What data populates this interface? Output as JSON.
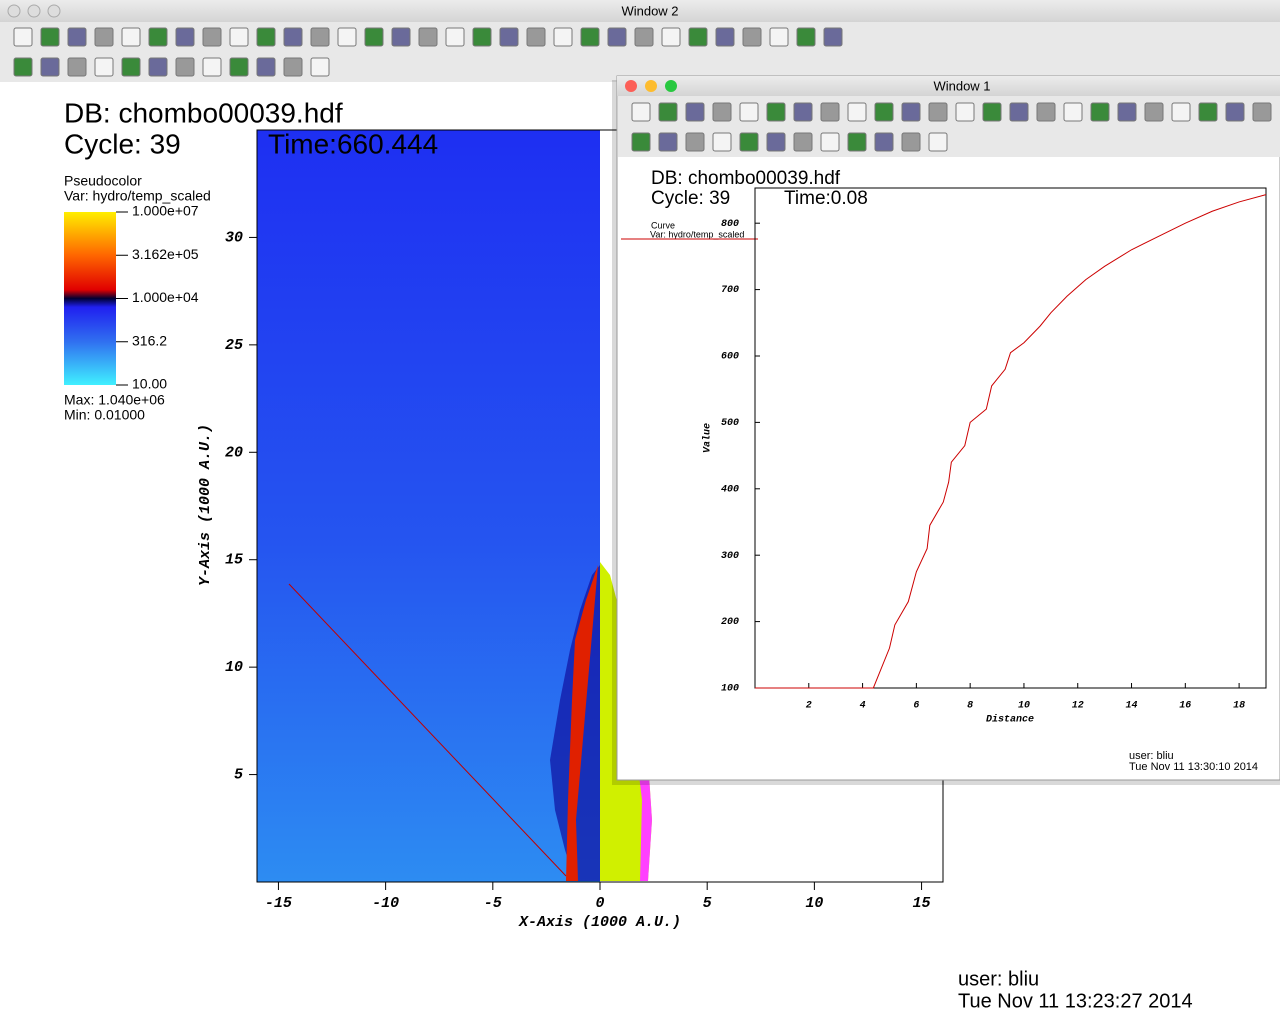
{
  "window2": {
    "title": "Window 2",
    "db": "DB: chombo00039.hdf",
    "cycle": "Cycle: 39",
    "time": "Time:660.444",
    "legend": {
      "type": "Pseudocolor",
      "var": "Var: hydro/temp_scaled",
      "scale": "log",
      "lim": [
        10,
        10000000
      ],
      "ticks": [
        {
          "value": 10000000,
          "label": "1.000e+07"
        },
        {
          "value": 316200,
          "label": "3.162e+05"
        },
        {
          "value": 10000,
          "label": "1.000e+04"
        },
        {
          "value": 316.2,
          "label": "316.2"
        },
        {
          "value": 10,
          "label": "10.00"
        }
      ],
      "max": "Max:  1.040e+06",
      "min": "Min:  0.01000"
    },
    "plot": {
      "x_label": "X-Axis (1000 A.U.)",
      "y_label": "Y-Axis (1000 A.U.)",
      "xlim": [
        -16,
        16
      ],
      "ylim": [
        0,
        35
      ],
      "xticks": [
        -15,
        -10,
        -5,
        0,
        5,
        10,
        15
      ],
      "yticks": [
        5,
        10,
        15,
        20,
        25,
        30
      ]
    },
    "user": "user: bliu",
    "date": "Tue Nov 11 13:23:27 2014"
  },
  "window1": {
    "title": "Window 1",
    "db": "DB: chombo00039.hdf",
    "cycle": "Cycle: 39",
    "time": "Time:0.08",
    "legend": {
      "type": "Curve",
      "var": "Var: hydro/temp_scaled"
    },
    "plot": {
      "type": "line",
      "x_label": "Distance",
      "y_label": "Value",
      "color": "#cc0000",
      "xlim": [
        0,
        19
      ],
      "ylim": [
        100,
        853
      ],
      "xticks": [
        2,
        4,
        6,
        8,
        10,
        12,
        14,
        16,
        18
      ],
      "yticks": [
        100,
        200,
        300,
        400,
        500,
        600,
        700,
        800
      ],
      "x": [
        0,
        4.4,
        4.6,
        5,
        5.2,
        5.7,
        6,
        6.4,
        6.5,
        7,
        7.2,
        7.3,
        7.8,
        8,
        8.6,
        8.8,
        9.3,
        9.5,
        10,
        10.6,
        11,
        11.6,
        12.3,
        13,
        14,
        15,
        16,
        17,
        18,
        19
      ],
      "y": [
        100,
        100,
        120,
        160,
        195,
        230,
        275,
        310,
        345,
        380,
        410,
        440,
        465,
        500,
        520,
        555,
        580,
        605,
        620,
        645,
        665,
        690,
        715,
        735,
        760,
        780,
        800,
        818,
        832,
        843
      ]
    },
    "user": "user: bliu",
    "date": "Tue Nov 11 13:30:10 2014"
  }
}
